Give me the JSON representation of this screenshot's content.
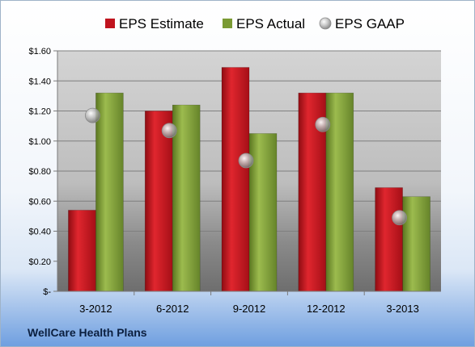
{
  "chart_data": {
    "type": "bar",
    "categories": [
      "3-2012",
      "6-2012",
      "9-2012",
      "12-2012",
      "3-2013"
    ],
    "series": [
      {
        "name": "EPS Estimate",
        "values": [
          0.54,
          1.2,
          1.49,
          1.32,
          0.69
        ],
        "color": "#c0141e"
      },
      {
        "name": "EPS Actual",
        "values": [
          1.32,
          1.24,
          1.05,
          1.32,
          0.63
        ],
        "color": "#7a9a33"
      },
      {
        "name": "EPS GAAP",
        "values": [
          1.17,
          1.07,
          0.87,
          1.11,
          0.49
        ],
        "color": "#9a9a9a",
        "marker": "sphere"
      }
    ],
    "ylim": [
      0,
      1.6
    ],
    "yticks": [
      0,
      0.2,
      0.4,
      0.6,
      0.8,
      1.0,
      1.2,
      1.4,
      1.6
    ],
    "ytick_labels": [
      "$-",
      "$0.20",
      "$0.40",
      "$0.60",
      "$0.80",
      "$1.00",
      "$1.20",
      "$1.40",
      "$1.60"
    ],
    "legend_position": "top",
    "grid": true
  },
  "company": "WellCare Health Plans"
}
